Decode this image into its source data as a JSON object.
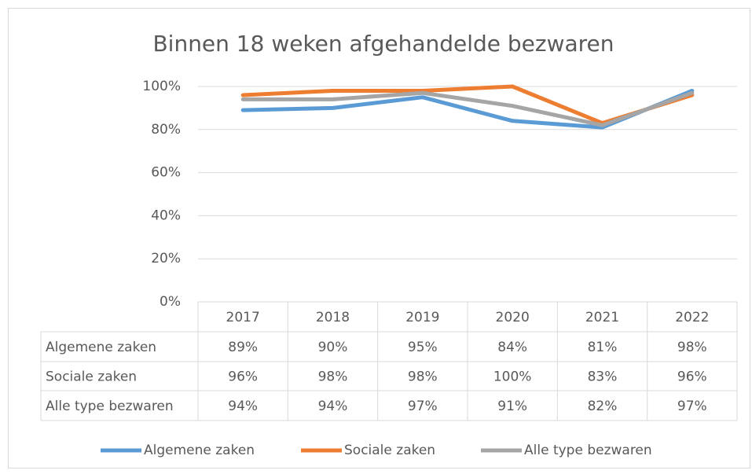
{
  "chart_data": {
    "type": "line",
    "title": "Binnen 18 weken afgehandelde bezwaren",
    "categories": [
      "2017",
      "2018",
      "2019",
      "2020",
      "2021",
      "2022"
    ],
    "series": [
      {
        "name": "Algemene zaken",
        "color": "#5b9bd5",
        "values": [
          89,
          90,
          95,
          84,
          81,
          98
        ],
        "value_labels": [
          "89%",
          "90%",
          "95%",
          "84%",
          "81%",
          "98%"
        ]
      },
      {
        "name": "Sociale zaken",
        "color": "#ed7d31",
        "values": [
          96,
          98,
          98,
          100,
          83,
          96
        ],
        "value_labels": [
          "96%",
          "98%",
          "98%",
          "100%",
          "83%",
          "96%"
        ]
      },
      {
        "name": "Alle type bezwaren",
        "color": "#a5a5a5",
        "values": [
          94,
          94,
          97,
          91,
          82,
          97
        ],
        "value_labels": [
          "94%",
          "94%",
          "97%",
          "91%",
          "82%",
          "97%"
        ]
      }
    ],
    "ylim": [
      0,
      100
    ],
    "yticks": [
      {
        "value": 0,
        "label": "0%"
      },
      {
        "value": 20,
        "label": "20%"
      },
      {
        "value": 40,
        "label": "40%"
      },
      {
        "value": 60,
        "label": "60%"
      },
      {
        "value": 80,
        "label": "80%"
      },
      {
        "value": 100,
        "label": "100%"
      }
    ],
    "grid": true,
    "legend": "bottom"
  }
}
